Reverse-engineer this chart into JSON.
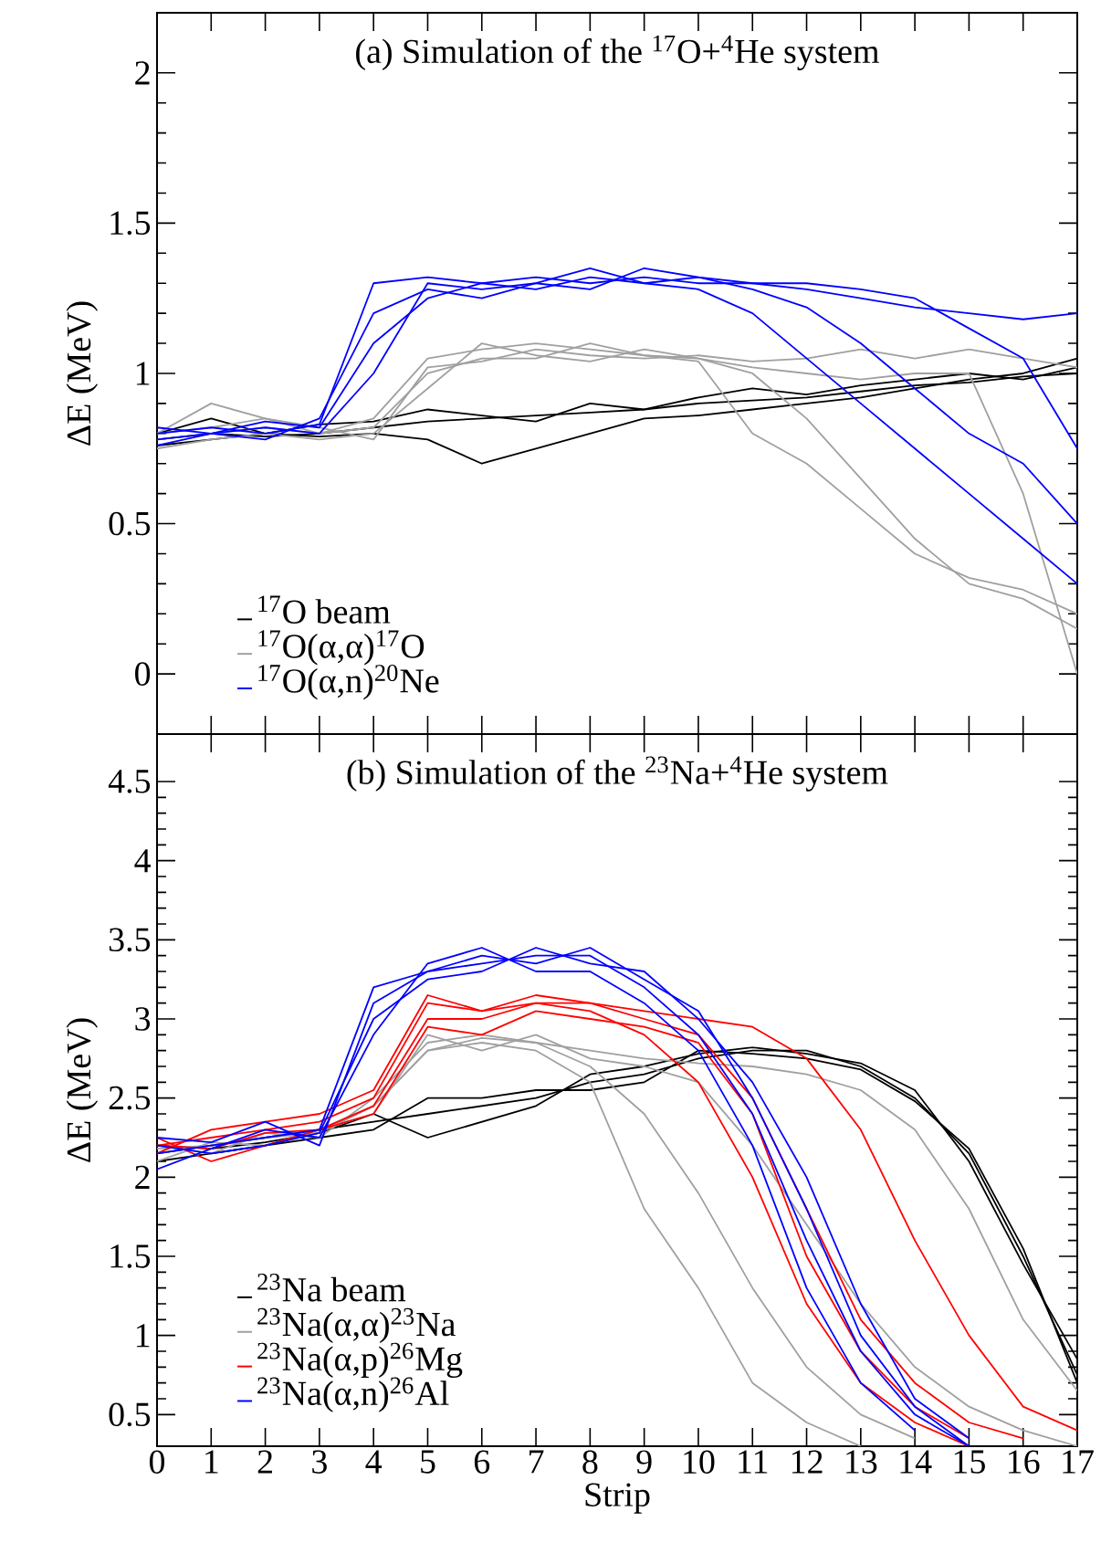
{
  "chart_data": [
    {
      "type": "line",
      "title": "(a) Simulation of the $^{17}$O+$^{4}$He system",
      "ylabel": "ΔE (MeV)",
      "xlim": [
        0,
        17
      ],
      "xticks": [
        0,
        1,
        2,
        3,
        4,
        5,
        6,
        7,
        8,
        9,
        10,
        11,
        12,
        13,
        14,
        15,
        16,
        17
      ],
      "ylim": [
        -0.2,
        2.2
      ],
      "yticks": [
        0,
        0.5,
        1,
        1.5,
        2
      ],
      "tick_labels": "y",
      "legend": "bottom left",
      "x": [
        0,
        1,
        2,
        3,
        4,
        5,
        6,
        7,
        8,
        9,
        10,
        11,
        12,
        13,
        14,
        15,
        16,
        17
      ],
      "series": [
        {
          "name": "$^{17}$O beam",
          "color": "#000000",
          "values": [
            0.78,
            0.8,
            0.79,
            0.8,
            0.82,
            0.84,
            0.85,
            0.86,
            0.87,
            0.88,
            0.9,
            0.91,
            0.92,
            0.94,
            0.96,
            0.97,
            0.99,
            1.0
          ]
        },
        {
          "color": "#000000",
          "values": [
            0.76,
            0.78,
            0.8,
            0.79,
            0.8,
            0.78,
            0.7,
            0.75,
            0.8,
            0.85,
            0.86,
            0.88,
            0.9,
            0.92,
            0.95,
            0.98,
            1.0,
            1.05
          ]
        },
        {
          "color": "#000000",
          "values": [
            0.8,
            0.85,
            0.8,
            0.83,
            0.84,
            0.88,
            0.86,
            0.84,
            0.9,
            0.88,
            0.92,
            0.95,
            0.93,
            0.96,
            0.98,
            1.0,
            0.98,
            1.02
          ]
        },
        {
          "name": "$^{17}$O(α,α)$^{17}$O",
          "color": "#a0a0a0",
          "values": [
            0.8,
            0.9,
            0.85,
            0.8,
            0.85,
            1.05,
            1.08,
            1.1,
            1.08,
            1.06,
            1.05,
            1.0,
            0.85,
            0.65,
            0.45,
            0.3,
            0.25,
            0.15
          ]
        },
        {
          "color": "#a0a0a0",
          "values": [
            0.78,
            0.8,
            0.82,
            0.8,
            0.82,
            1.0,
            1.05,
            1.05,
            1.1,
            1.06,
            1.04,
            0.8,
            0.7,
            0.55,
            0.4,
            0.32,
            0.28,
            0.2
          ]
        },
        {
          "color": "#a0a0a0",
          "values": [
            0.75,
            0.78,
            0.8,
            0.78,
            0.8,
            0.95,
            1.1,
            1.06,
            1.04,
            1.08,
            1.05,
            1.02,
            1.0,
            0.98,
            1.0,
            1.0,
            0.6,
            0.0
          ]
        },
        {
          "color": "#a0a0a0",
          "values": [
            0.8,
            0.82,
            0.85,
            0.82,
            0.78,
            1.02,
            1.04,
            1.08,
            1.06,
            1.05,
            1.06,
            1.04,
            1.05,
            1.08,
            1.05,
            1.08,
            1.05,
            1.02
          ]
        },
        {
          "name": "$^{17}$O(α,n)$^{20}$Ne",
          "color": "#0000ff",
          "values": [
            0.8,
            0.82,
            0.8,
            0.83,
            1.3,
            1.32,
            1.3,
            1.32,
            1.3,
            1.32,
            1.3,
            1.3,
            1.28,
            1.25,
            1.22,
            1.2,
            1.18,
            1.2
          ]
        },
        {
          "color": "#0000ff",
          "values": [
            0.78,
            0.8,
            0.82,
            0.8,
            1.0,
            1.3,
            1.28,
            1.3,
            1.35,
            1.3,
            1.28,
            1.2,
            1.05,
            0.9,
            0.75,
            0.6,
            0.45,
            0.3
          ]
        },
        {
          "color": "#0000ff",
          "values": [
            0.82,
            0.8,
            0.84,
            0.82,
            1.1,
            1.25,
            1.3,
            1.28,
            1.32,
            1.3,
            1.32,
            1.28,
            1.22,
            1.1,
            0.95,
            0.8,
            0.7,
            0.5
          ]
        },
        {
          "color": "#0000ff",
          "values": [
            0.76,
            0.8,
            0.78,
            0.85,
            1.2,
            1.28,
            1.25,
            1.3,
            1.28,
            1.35,
            1.32,
            1.3,
            1.3,
            1.28,
            1.25,
            1.15,
            1.05,
            0.75
          ]
        }
      ]
    },
    {
      "type": "line",
      "title": "(b)  Simulation of the $^{23}$Na+$^{4}$He system",
      "xlabel": "Strip",
      "ylabel": "ΔE (MeV)",
      "xlim": [
        0,
        17
      ],
      "xticks": [
        0,
        1,
        2,
        3,
        4,
        5,
        6,
        7,
        8,
        9,
        10,
        11,
        12,
        13,
        14,
        15,
        16,
        17
      ],
      "ylim": [
        0.3,
        4.8
      ],
      "yticks": [
        0.5,
        1,
        1.5,
        2,
        2.5,
        3,
        3.5,
        4,
        4.5
      ],
      "legend": "bottom left",
      "x": [
        0,
        1,
        2,
        3,
        4,
        5,
        6,
        7,
        8,
        9,
        10,
        11,
        12,
        13,
        14,
        15,
        16,
        17
      ],
      "series": [
        {
          "name": "$^{23}$Na beam",
          "color": "#000000",
          "values": [
            2.15,
            2.2,
            2.25,
            2.3,
            2.35,
            2.4,
            2.45,
            2.5,
            2.6,
            2.65,
            2.75,
            2.8,
            2.8,
            2.7,
            2.5,
            2.15,
            1.5,
            0.75
          ]
        },
        {
          "color": "#000000",
          "values": [
            2.2,
            2.18,
            2.22,
            2.28,
            2.4,
            2.25,
            2.35,
            2.45,
            2.65,
            2.7,
            2.78,
            2.82,
            2.78,
            2.72,
            2.55,
            2.1,
            1.45,
            0.85
          ]
        },
        {
          "color": "#000000",
          "values": [
            2.1,
            2.15,
            2.2,
            2.25,
            2.3,
            2.5,
            2.5,
            2.55,
            2.55,
            2.6,
            2.8,
            2.78,
            2.75,
            2.68,
            2.48,
            2.18,
            1.55,
            0.7
          ]
        },
        {
          "name": "$^{23}$Na(α,α)$^{23}$Na",
          "color": "#a0a0a0",
          "values": [
            2.15,
            2.2,
            2.25,
            2.3,
            2.45,
            2.8,
            2.85,
            2.8,
            2.6,
            1.8,
            1.3,
            0.7,
            0.45,
            0.3,
            null,
            null,
            null,
            null
          ]
        },
        {
          "color": "#a0a0a0",
          "values": [
            2.2,
            2.15,
            2.28,
            2.25,
            2.5,
            2.85,
            2.9,
            2.85,
            2.7,
            2.4,
            1.9,
            1.3,
            0.8,
            0.5,
            0.35,
            null,
            null,
            null
          ]
        },
        {
          "color": "#a0a0a0",
          "values": [
            2.1,
            2.22,
            2.2,
            2.3,
            2.4,
            2.9,
            2.8,
            2.9,
            2.75,
            2.7,
            2.6,
            2.2,
            1.7,
            1.2,
            0.8,
            0.55,
            0.4,
            0.3
          ]
        },
        {
          "color": "#a0a0a0",
          "values": [
            2.18,
            2.2,
            2.25,
            2.28,
            2.45,
            2.8,
            2.88,
            2.85,
            2.8,
            2.75,
            2.72,
            2.7,
            2.65,
            2.55,
            2.3,
            1.8,
            1.1,
            0.65
          ]
        },
        {
          "name": "$^{23}$Na(α,p)$^{26}$Mg",
          "color": "#ff0000",
          "values": [
            2.2,
            2.25,
            2.3,
            2.35,
            2.5,
            3.1,
            3.05,
            3.1,
            3.05,
            2.9,
            2.6,
            2.0,
            1.2,
            0.7,
            0.45,
            0.3,
            null,
            null
          ]
        },
        {
          "color": "#ff0000",
          "values": [
            2.25,
            2.1,
            2.2,
            2.3,
            2.45,
            3.0,
            3.0,
            3.1,
            3.1,
            3.0,
            2.9,
            2.5,
            1.8,
            1.1,
            0.7,
            0.45,
            0.35,
            null
          ]
        },
        {
          "color": "#ff0000",
          "values": [
            2.15,
            2.3,
            2.35,
            2.4,
            2.55,
            3.15,
            3.05,
            3.15,
            3.1,
            3.05,
            3.0,
            2.95,
            2.75,
            2.3,
            1.6,
            1.0,
            0.55,
            0.4
          ]
        },
        {
          "color": "#ff0000",
          "values": [
            2.2,
            2.18,
            2.28,
            2.3,
            2.4,
            2.95,
            2.9,
            3.05,
            3.0,
            2.95,
            2.85,
            2.4,
            1.5,
            0.9,
            0.55,
            0.35,
            null,
            null
          ]
        },
        {
          "name": "$^{23}$Na(α,n)$^{26}$Al",
          "color": "#0000ff",
          "values": [
            2.15,
            2.2,
            2.25,
            2.3,
            3.2,
            3.3,
            3.35,
            3.4,
            3.4,
            3.2,
            2.9,
            2.4,
            1.6,
            0.9,
            0.5,
            0.3,
            null,
            null
          ]
        },
        {
          "color": "#0000ff",
          "values": [
            2.05,
            2.18,
            2.3,
            2.25,
            2.9,
            3.35,
            3.45,
            3.3,
            3.3,
            3.1,
            2.8,
            2.2,
            1.3,
            0.7,
            0.4,
            null,
            null,
            null
          ]
        },
        {
          "color": "#0000ff",
          "values": [
            2.2,
            2.15,
            2.2,
            2.28,
            3.0,
            3.25,
            3.3,
            3.45,
            3.35,
            3.3,
            3.0,
            2.6,
            2.0,
            1.2,
            0.6,
            0.35,
            null,
            null
          ]
        },
        {
          "color": "#0000ff",
          "values": [
            2.25,
            2.22,
            2.35,
            2.2,
            3.1,
            3.3,
            3.4,
            3.35,
            3.45,
            3.25,
            3.05,
            2.5,
            1.8,
            1.0,
            0.55,
            0.3,
            null,
            null
          ]
        }
      ]
    }
  ]
}
